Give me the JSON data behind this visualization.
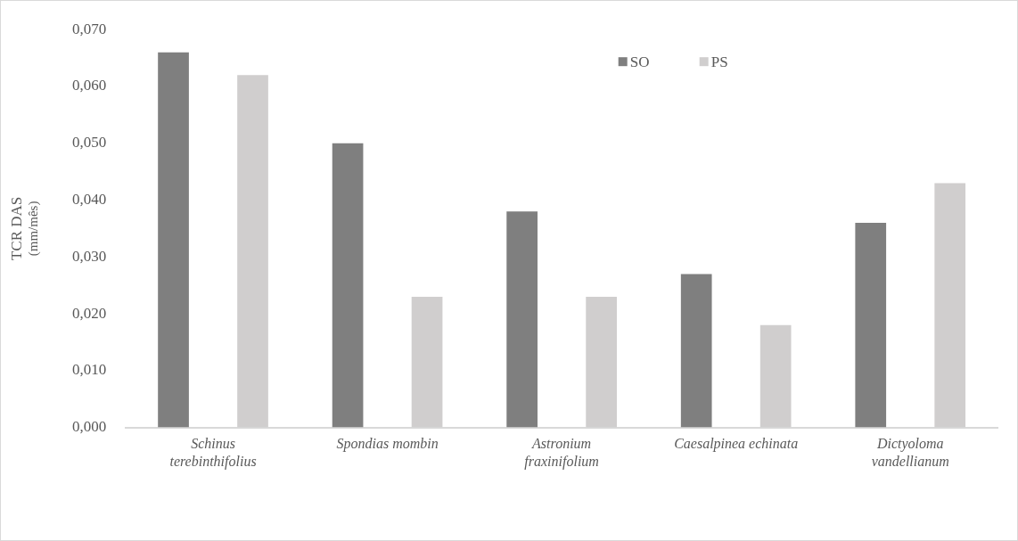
{
  "chart_data": {
    "type": "bar",
    "ylabel": "TCR DAS\n(mm/mês)",
    "categories": [
      "Schinus terebinthifolius",
      "Spondias mombin",
      "Astronium fraxinifolium",
      "Caesalpinea echinata",
      "Dictyoloma vandellianum"
    ],
    "series": [
      {
        "name": "SO",
        "color": "#7f7f7f",
        "values": [
          0.066,
          0.05,
          0.038,
          0.027,
          0.036
        ]
      },
      {
        "name": "PS",
        "color": "#d0cece",
        "values": [
          0.062,
          0.023,
          0.023,
          0.018,
          0.043
        ]
      }
    ],
    "ylim": [
      0,
      0.07
    ],
    "yticks": [
      {
        "value": 0,
        "label": "0,000"
      },
      {
        "value": 0.01,
        "label": "0,010"
      },
      {
        "value": 0.02,
        "label": "0,020"
      },
      {
        "value": 0.03,
        "label": "0,030"
      },
      {
        "value": 0.04,
        "label": "0,040"
      },
      {
        "value": 0.05,
        "label": "0,050"
      },
      {
        "value": 0.06,
        "label": "0,060"
      },
      {
        "value": 0.07,
        "label": "0,070"
      }
    ],
    "grid": false,
    "legend": "top right"
  }
}
